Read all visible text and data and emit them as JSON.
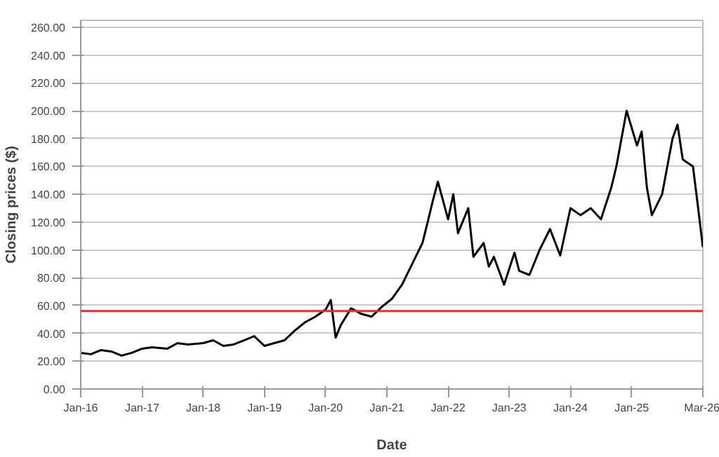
{
  "chart_data": {
    "type": "line",
    "xlabel": "Date",
    "ylabel": "Closing prices ($)",
    "x": [
      "2016-01-04",
      "2016-03",
      "2016-05",
      "2016-07",
      "2016-09",
      "2016-11",
      "2017-01",
      "2017-03",
      "2017-06",
      "2017-08",
      "2017-10",
      "2018-01",
      "2018-03",
      "2018-05",
      "2018-07",
      "2018-09",
      "2018-11",
      "2019-01",
      "2019-03",
      "2019-05",
      "2019-07",
      "2019-09",
      "2019-11",
      "2020-01",
      "2020-02",
      "2020-03",
      "2020-04",
      "2020-06",
      "2020-08",
      "2020-10",
      "2020-12",
      "2021-02",
      "2021-04",
      "2021-06",
      "2021-08",
      "2021-09",
      "2021-10",
      "2021-11",
      "2022-01",
      "2022-02",
      "2022-03",
      "2022-05",
      "2022-06",
      "2022-08",
      "2022-09",
      "2022-10",
      "2022-12",
      "2023-02",
      "2023-03",
      "2023-05",
      "2023-07",
      "2023-09",
      "2023-11",
      "2024-01",
      "2024-03",
      "2024-05",
      "2024-07",
      "2024-09",
      "2024-10",
      "2024-12",
      "2025-02",
      "2025-03",
      "2025-04",
      "2025-05",
      "2025-07",
      "2025-09",
      "2025-10",
      "2025-11",
      "2026-01",
      "2026-02",
      "2026-03-01"
    ],
    "series": [
      {
        "color": "#000000",
        "values": [
          26,
          25,
          28,
          27,
          24,
          26,
          29,
          30,
          29,
          33,
          32,
          33,
          35,
          31,
          32,
          35,
          38,
          31,
          33,
          35,
          42,
          48,
          52,
          57,
          64,
          37,
          46,
          58,
          54,
          52,
          59,
          65,
          75,
          90,
          105,
          120,
          135,
          149,
          122,
          140,
          112,
          130,
          95,
          105,
          88,
          95,
          75,
          98,
          85,
          82,
          100,
          115,
          96,
          130,
          125,
          130,
          122,
          145,
          160,
          200,
          175,
          185,
          145,
          125,
          140,
          180,
          190,
          165,
          160,
          130,
          102
        ]
      }
    ],
    "xlim": [
      "2016-01-01",
      "2026-03-01"
    ],
    "xticks": [
      {
        "value": "2016-01-01",
        "label": "Jan-16"
      },
      {
        "value": "2017-01-01",
        "label": "Jan-17"
      },
      {
        "value": "2018-01-01",
        "label": "Jan-18"
      },
      {
        "value": "2019-01-01",
        "label": "Jan-19"
      },
      {
        "value": "2020-01-01",
        "label": "Jan-20"
      },
      {
        "value": "2021-01-01",
        "label": "Jan-21"
      },
      {
        "value": "2022-01-01",
        "label": "Jan-22"
      },
      {
        "value": "2023-01-01",
        "label": "Jan-23"
      },
      {
        "value": "2024-01-01",
        "label": "Jan-24"
      },
      {
        "value": "2025-01-01",
        "label": "Jan-25"
      },
      {
        "value": "2026-03-01",
        "label": "Mar-26"
      }
    ],
    "ylim": [
      0,
      265
    ],
    "yticks": [
      {
        "value": 0,
        "label": "0.00"
      },
      {
        "value": 20,
        "label": "20.00"
      },
      {
        "value": 40,
        "label": "40.00"
      },
      {
        "value": 60,
        "label": "60.00"
      },
      {
        "value": 80,
        "label": "80.00"
      },
      {
        "value": 100,
        "label": "100.00"
      },
      {
        "value": 120,
        "label": "120.00"
      },
      {
        "value": 140,
        "label": "140.00"
      },
      {
        "value": 160,
        "label": "160.00"
      },
      {
        "value": 180,
        "label": "180.00"
      },
      {
        "value": 200,
        "label": "200.00"
      },
      {
        "value": 220,
        "label": "220.00"
      },
      {
        "value": 240,
        "label": "240.00"
      },
      {
        "value": 260,
        "label": "260.00"
      }
    ],
    "grid": "y",
    "ref_lines": [
      {
        "axis": "y",
        "value": 56,
        "color": "#e03030"
      }
    ]
  }
}
